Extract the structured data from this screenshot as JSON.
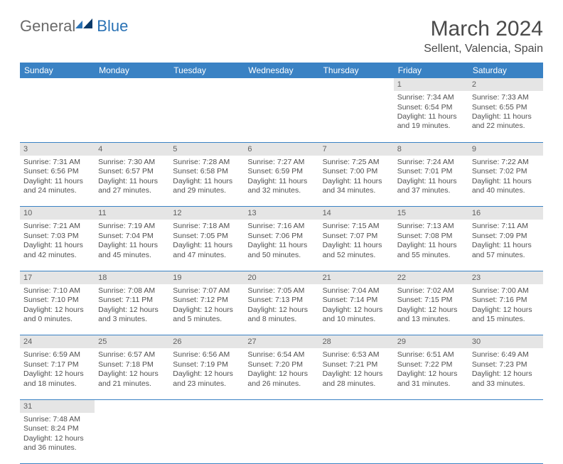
{
  "logo": {
    "general": "General",
    "blue": "Blue"
  },
  "title": "March 2024",
  "location": "Sellent, Valencia, Spain",
  "colors": {
    "header_bg": "#3a82c4",
    "header_text": "#ffffff",
    "daynum_bg": "#e5e5e5",
    "text": "#505050",
    "border": "#3a82c4"
  },
  "weekdays": [
    "Sunday",
    "Monday",
    "Tuesday",
    "Wednesday",
    "Thursday",
    "Friday",
    "Saturday"
  ],
  "weeks": [
    [
      null,
      null,
      null,
      null,
      null,
      {
        "n": "1",
        "sr": "7:34 AM",
        "ss": "6:54 PM",
        "dl": "11 hours and 19 minutes."
      },
      {
        "n": "2",
        "sr": "7:33 AM",
        "ss": "6:55 PM",
        "dl": "11 hours and 22 minutes."
      }
    ],
    [
      {
        "n": "3",
        "sr": "7:31 AM",
        "ss": "6:56 PM",
        "dl": "11 hours and 24 minutes."
      },
      {
        "n": "4",
        "sr": "7:30 AM",
        "ss": "6:57 PM",
        "dl": "11 hours and 27 minutes."
      },
      {
        "n": "5",
        "sr": "7:28 AM",
        "ss": "6:58 PM",
        "dl": "11 hours and 29 minutes."
      },
      {
        "n": "6",
        "sr": "7:27 AM",
        "ss": "6:59 PM",
        "dl": "11 hours and 32 minutes."
      },
      {
        "n": "7",
        "sr": "7:25 AM",
        "ss": "7:00 PM",
        "dl": "11 hours and 34 minutes."
      },
      {
        "n": "8",
        "sr": "7:24 AM",
        "ss": "7:01 PM",
        "dl": "11 hours and 37 minutes."
      },
      {
        "n": "9",
        "sr": "7:22 AM",
        "ss": "7:02 PM",
        "dl": "11 hours and 40 minutes."
      }
    ],
    [
      {
        "n": "10",
        "sr": "7:21 AM",
        "ss": "7:03 PM",
        "dl": "11 hours and 42 minutes."
      },
      {
        "n": "11",
        "sr": "7:19 AM",
        "ss": "7:04 PM",
        "dl": "11 hours and 45 minutes."
      },
      {
        "n": "12",
        "sr": "7:18 AM",
        "ss": "7:05 PM",
        "dl": "11 hours and 47 minutes."
      },
      {
        "n": "13",
        "sr": "7:16 AM",
        "ss": "7:06 PM",
        "dl": "11 hours and 50 minutes."
      },
      {
        "n": "14",
        "sr": "7:15 AM",
        "ss": "7:07 PM",
        "dl": "11 hours and 52 minutes."
      },
      {
        "n": "15",
        "sr": "7:13 AM",
        "ss": "7:08 PM",
        "dl": "11 hours and 55 minutes."
      },
      {
        "n": "16",
        "sr": "7:11 AM",
        "ss": "7:09 PM",
        "dl": "11 hours and 57 minutes."
      }
    ],
    [
      {
        "n": "17",
        "sr": "7:10 AM",
        "ss": "7:10 PM",
        "dl": "12 hours and 0 minutes."
      },
      {
        "n": "18",
        "sr": "7:08 AM",
        "ss": "7:11 PM",
        "dl": "12 hours and 3 minutes."
      },
      {
        "n": "19",
        "sr": "7:07 AM",
        "ss": "7:12 PM",
        "dl": "12 hours and 5 minutes."
      },
      {
        "n": "20",
        "sr": "7:05 AM",
        "ss": "7:13 PM",
        "dl": "12 hours and 8 minutes."
      },
      {
        "n": "21",
        "sr": "7:04 AM",
        "ss": "7:14 PM",
        "dl": "12 hours and 10 minutes."
      },
      {
        "n": "22",
        "sr": "7:02 AM",
        "ss": "7:15 PM",
        "dl": "12 hours and 13 minutes."
      },
      {
        "n": "23",
        "sr": "7:00 AM",
        "ss": "7:16 PM",
        "dl": "12 hours and 15 minutes."
      }
    ],
    [
      {
        "n": "24",
        "sr": "6:59 AM",
        "ss": "7:17 PM",
        "dl": "12 hours and 18 minutes."
      },
      {
        "n": "25",
        "sr": "6:57 AM",
        "ss": "7:18 PM",
        "dl": "12 hours and 21 minutes."
      },
      {
        "n": "26",
        "sr": "6:56 AM",
        "ss": "7:19 PM",
        "dl": "12 hours and 23 minutes."
      },
      {
        "n": "27",
        "sr": "6:54 AM",
        "ss": "7:20 PM",
        "dl": "12 hours and 26 minutes."
      },
      {
        "n": "28",
        "sr": "6:53 AM",
        "ss": "7:21 PM",
        "dl": "12 hours and 28 minutes."
      },
      {
        "n": "29",
        "sr": "6:51 AM",
        "ss": "7:22 PM",
        "dl": "12 hours and 31 minutes."
      },
      {
        "n": "30",
        "sr": "6:49 AM",
        "ss": "7:23 PM",
        "dl": "12 hours and 33 minutes."
      }
    ],
    [
      {
        "n": "31",
        "sr": "7:48 AM",
        "ss": "8:24 PM",
        "dl": "12 hours and 36 minutes."
      },
      null,
      null,
      null,
      null,
      null,
      null
    ]
  ],
  "labels": {
    "sunrise": "Sunrise:",
    "sunset": "Sunset:",
    "daylight": "Daylight:"
  }
}
